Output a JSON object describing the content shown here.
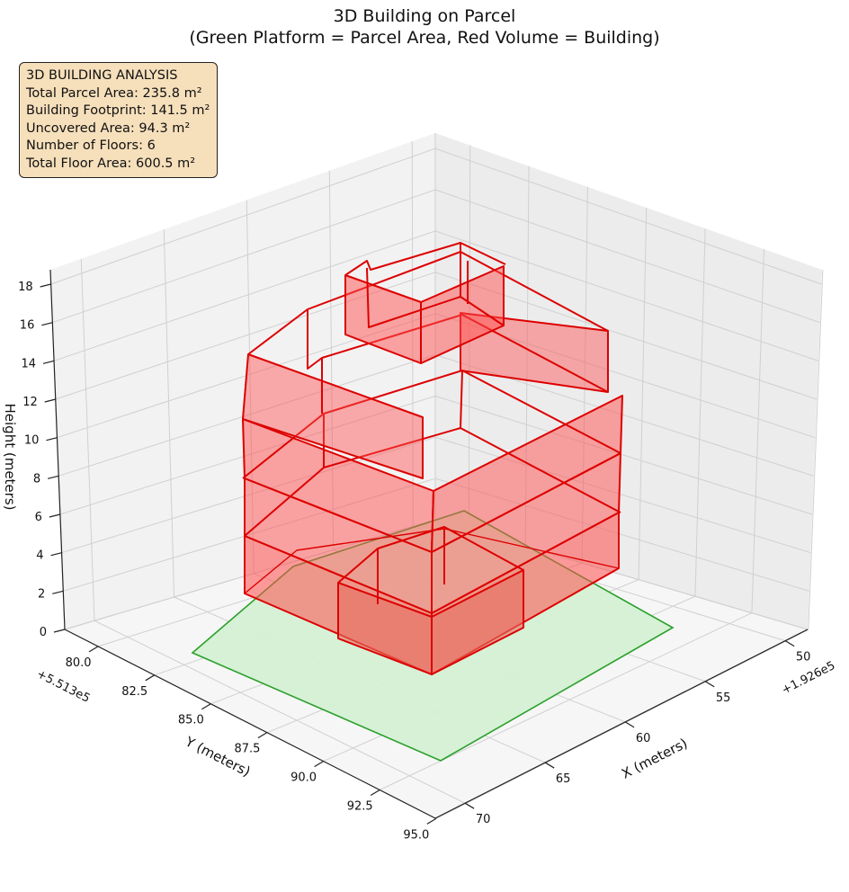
{
  "chart_data": {
    "type": "3d-polygons",
    "title_line1": "3D Building on Parcel",
    "title_line2": "(Green Platform = Parcel Area, Red Volume = Building)",
    "xlabel": "X (meters)",
    "ylabel": "Y (meters)",
    "zlabel": "Height (meters)",
    "x_offset_label": "+1.926e5",
    "y_offset_label": "+5.513e5",
    "x_ticks": [
      "50",
      "55",
      "60",
      "65",
      "70"
    ],
    "y_ticks": [
      "80.0",
      "82.5",
      "85.0",
      "87.5",
      "90.0",
      "92.5",
      "95.0"
    ],
    "z_ticks": [
      "0",
      "2",
      "4",
      "6",
      "8",
      "10",
      "12",
      "14",
      "16",
      "18"
    ],
    "zlim": [
      0,
      18
    ],
    "grid": true,
    "parcel": {
      "color": "#d4f0d4",
      "edge_color": "#2ca02c"
    },
    "building": {
      "color": "#ff4d4d",
      "edge_color": "#dd0000"
    },
    "annotation": {
      "heading": "3D BUILDING ANALYSIS",
      "parcel_area": "Total Parcel Area: 235.8 m²",
      "footprint": "Building Footprint: 141.5 m²",
      "uncovered": "Uncovered Area: 94.3 m²",
      "floors": "Number of Floors: 6",
      "floor_area": "Total Floor Area: 600.5 m²"
    }
  }
}
